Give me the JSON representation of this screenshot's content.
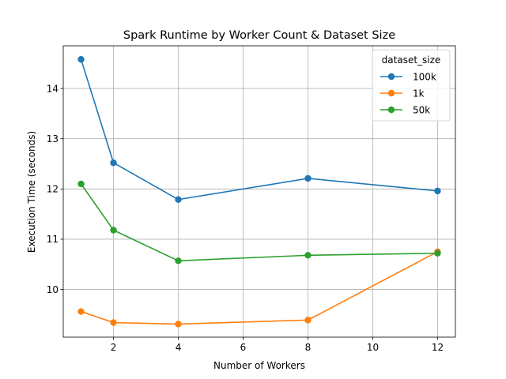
{
  "chart_data": {
    "type": "line",
    "title": "Spark Runtime by Worker Count & Dataset Size",
    "xlabel": "Number of Workers",
    "ylabel": "Execution Time (seconds)",
    "xlim": [
      0.45,
      12.55
    ],
    "ylim": [
      9.05,
      14.85
    ],
    "xticks": [
      2,
      4,
      6,
      8,
      10,
      12
    ],
    "yticks": [
      10,
      11,
      12,
      13,
      14
    ],
    "grid": true,
    "legend": {
      "title": "dataset_size",
      "placement": "top-right"
    },
    "x": [
      1,
      2,
      4,
      8,
      12
    ],
    "series": [
      {
        "name": "100k",
        "color": "#1f77b4",
        "values": [
          14.58,
          12.52,
          11.79,
          12.21,
          11.96
        ]
      },
      {
        "name": "1k",
        "color": "#ff7f0e",
        "values": [
          9.56,
          9.34,
          9.31,
          9.39,
          10.75
        ]
      },
      {
        "name": "50k",
        "color": "#2ca02c",
        "values": [
          12.1,
          11.18,
          10.57,
          10.68,
          10.72
        ]
      }
    ]
  }
}
